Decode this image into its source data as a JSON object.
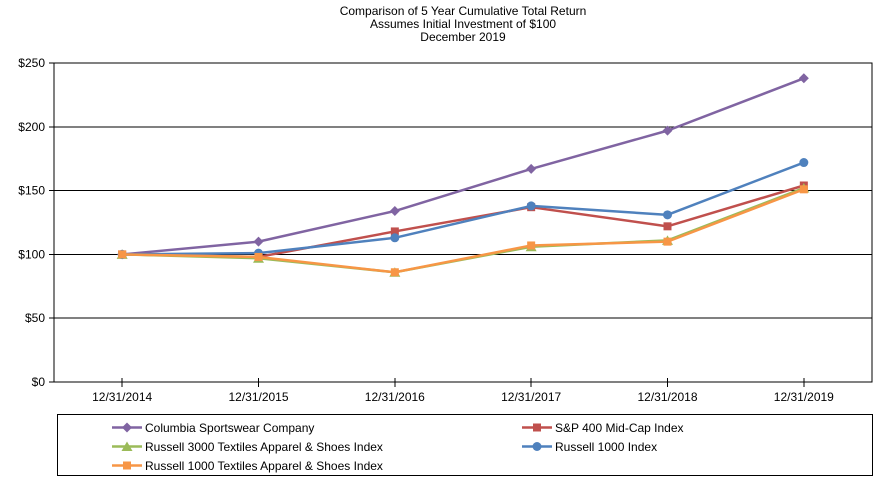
{
  "chart_data": {
    "type": "line",
    "title": "Comparison of 5 Year Cumulative Total Return",
    "subtitle1": "Assumes Initial Investment of $100",
    "subtitle2": "December 2019",
    "categories": [
      "12/31/2014",
      "12/31/2015",
      "12/31/2016",
      "12/31/2017",
      "12/31/2018",
      "12/31/2019"
    ],
    "y_axis": {
      "min": 0,
      "max": 250,
      "step": 50,
      "tick_labels": [
        "$0",
        "$50",
        "$100",
        "$150",
        "$200",
        "$250"
      ]
    },
    "grid": "horizontal",
    "legend_position": "bottom",
    "series": [
      {
        "name": "Columbia Sportswear Company",
        "color": "#8064A2",
        "marker": "diamond",
        "values": [
          100,
          110,
          134,
          167,
          197,
          238
        ]
      },
      {
        "name": "S&P 400 Mid-Cap Index",
        "color": "#C0504D",
        "marker": "square",
        "values": [
          100,
          98,
          118,
          137,
          122,
          154
        ]
      },
      {
        "name": "Russell 3000 Textiles Apparel & Shoes Index",
        "color": "#9BBB59",
        "marker": "triangle",
        "values": [
          100,
          97,
          86,
          106,
          111,
          152
        ]
      },
      {
        "name": "Russell 1000 Index",
        "color": "#4F81BD",
        "marker": "circle",
        "values": [
          100,
          101,
          113,
          138,
          131,
          172
        ]
      },
      {
        "name": "Russell 1000 Textiles Apparel & Shoes Index",
        "color": "#F79646",
        "marker": "square",
        "values": [
          100,
          98,
          86,
          107,
          110,
          151
        ]
      }
    ]
  }
}
